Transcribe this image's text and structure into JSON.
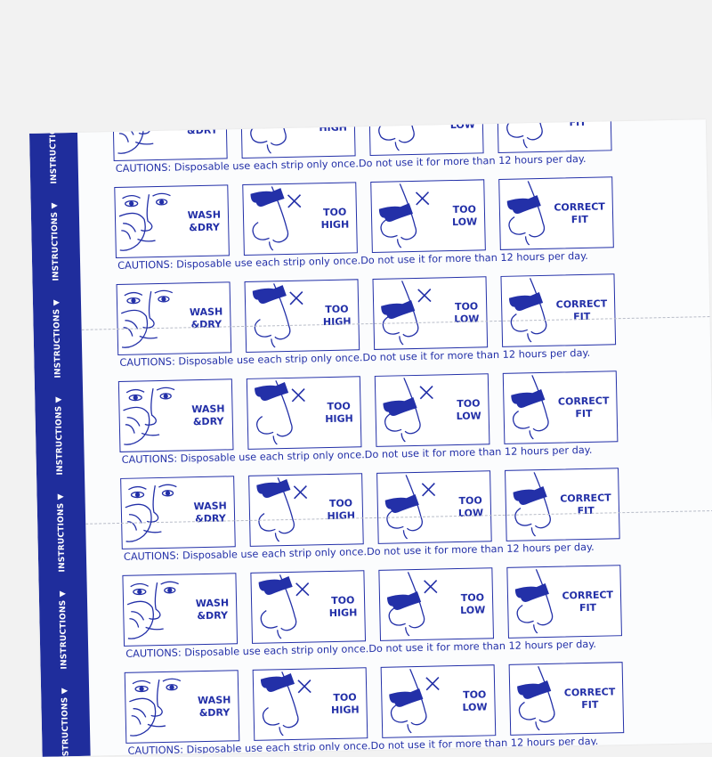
{
  "sidebar_label": "INSTRUCTIONS ▼",
  "panels": [
    {
      "icon": "face-wash-icon",
      "line1": "WASH",
      "line2": "&DRY"
    },
    {
      "icon": "nose-strip-too-high-icon",
      "line1": "TOO",
      "line2": "HIGH"
    },
    {
      "icon": "nose-strip-too-low-icon",
      "line1": "TOO",
      "line2": "LOW"
    },
    {
      "icon": "nose-strip-correct-icon",
      "line1": "CORRECT",
      "line2": "FIT"
    }
  ],
  "caution": "CAUTIONS: Disposable use each strip only once.Do not use it for more than 12 hours per day.",
  "colors": {
    "ink": "#2330a8",
    "band": "#1f2d9c",
    "paper": "#fbfcfd",
    "background": "#f2f2f2"
  }
}
